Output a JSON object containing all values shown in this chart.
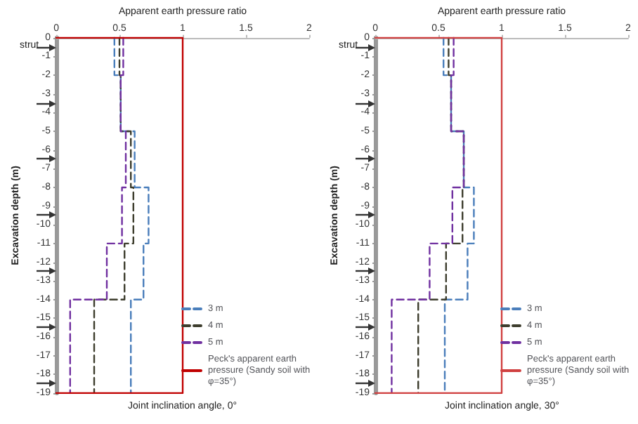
{
  "chart_data": [
    {
      "type": "line",
      "xlabel": "Apparent earth pressure ratio",
      "ylabel": "Excavation depth (m)",
      "xlim": [
        0,
        2
      ],
      "xticks": [
        0,
        0.5,
        1,
        1.5,
        2
      ],
      "ylim": [
        -19,
        0
      ],
      "yticks": [
        0,
        -1,
        -2,
        -3,
        -4,
        -5,
        -6,
        -7,
        -8,
        -9,
        -10,
        -11,
        -12,
        -13,
        -14,
        -15,
        -16,
        -17,
        -18,
        -19
      ],
      "legend": "bottom right",
      "annotations": [
        "strut",
        "Joint inclination angle, 0°"
      ],
      "series": [
        {
          "name": "3 m",
          "color": "#4a7ebb",
          "line_style": "dashed",
          "x": [
            0.46,
            0.46,
            0.51,
            0.51,
            0.62,
            0.62,
            0.73,
            0.73,
            0.69,
            0.69,
            0.59,
            0.59
          ],
          "values": [
            0,
            -2,
            -2,
            -5,
            -5,
            -8,
            -8,
            -11,
            -11,
            -14,
            -14,
            -19
          ]
        },
        {
          "name": "4 m",
          "color": "#3d3d2d",
          "line_style": "dashed",
          "x": [
            0.5,
            0.5,
            0.51,
            0.51,
            0.59,
            0.59,
            0.61,
            0.61,
            0.54,
            0.54,
            0.3,
            0.3
          ],
          "values": [
            0,
            -2,
            -2,
            -5,
            -5,
            -8,
            -8,
            -11,
            -11,
            -14,
            -14,
            -19
          ]
        },
        {
          "name": "5 m",
          "color": "#7030a0",
          "line_style": "dashed",
          "x": [
            0.53,
            0.53,
            0.51,
            0.51,
            0.55,
            0.55,
            0.52,
            0.52,
            0.4,
            0.4,
            0.11,
            0.11
          ],
          "values": [
            0,
            -2,
            -2,
            -5,
            -5,
            -8,
            -8,
            -11,
            -11,
            -14,
            -14,
            -19
          ]
        },
        {
          "name": "Peck's apparent earth pressure (Sandy soil with φ=35°)",
          "color": "#c00000",
          "line_style": "solid",
          "x": [
            0,
            1,
            1,
            0
          ],
          "values": [
            0,
            0,
            -19,
            -19
          ]
        }
      ]
    },
    {
      "type": "line",
      "xlabel": "Apparent earth pressure ratio",
      "ylabel": "Excavation depth (m)",
      "xlim": [
        0,
        2
      ],
      "xticks": [
        0,
        0.5,
        1,
        1.5,
        2
      ],
      "ylim": [
        -19,
        0
      ],
      "yticks": [
        0,
        -1,
        -2,
        -3,
        -4,
        -5,
        -6,
        -7,
        -8,
        -9,
        -10,
        -11,
        -12,
        -13,
        -14,
        -15,
        -16,
        -17,
        -18,
        -19
      ],
      "legend": "bottom right",
      "annotations": [
        "strut",
        "Joint inclination angle, 30°"
      ],
      "series": [
        {
          "name": "3 m",
          "color": "#4a7ebb",
          "line_style": "dashed",
          "x": [
            0.54,
            0.54,
            0.6,
            0.6,
            0.7,
            0.7,
            0.78,
            0.78,
            0.73,
            0.73,
            0.55,
            0.55
          ],
          "values": [
            0,
            -2,
            -2,
            -5,
            -5,
            -8,
            -8,
            -11,
            -11,
            -14,
            -14,
            -19
          ]
        },
        {
          "name": "4 m",
          "color": "#3d3d2d",
          "line_style": "dashed",
          "x": [
            0.58,
            0.58,
            0.6,
            0.6,
            0.7,
            0.7,
            0.69,
            0.69,
            0.56,
            0.56,
            0.34,
            0.34
          ],
          "values": [
            0,
            -2,
            -2,
            -5,
            -5,
            -8,
            -8,
            -11,
            -11,
            -14,
            -14,
            -19
          ]
        },
        {
          "name": "5 m",
          "color": "#7030a0",
          "line_style": "dashed",
          "x": [
            0.62,
            0.62,
            0.6,
            0.6,
            0.7,
            0.7,
            0.61,
            0.61,
            0.43,
            0.43,
            0.13,
            0.13
          ],
          "values": [
            0,
            -2,
            -2,
            -5,
            -5,
            -8,
            -8,
            -11,
            -11,
            -14,
            -14,
            -19
          ]
        },
        {
          "name": "Peck's apparent earth pressure (Sandy soil with φ=35°)",
          "color": "#d04040",
          "line_style": "solid",
          "x": [
            0,
            1,
            1,
            0
          ],
          "values": [
            0,
            0,
            -19,
            -19
          ]
        }
      ]
    }
  ]
}
